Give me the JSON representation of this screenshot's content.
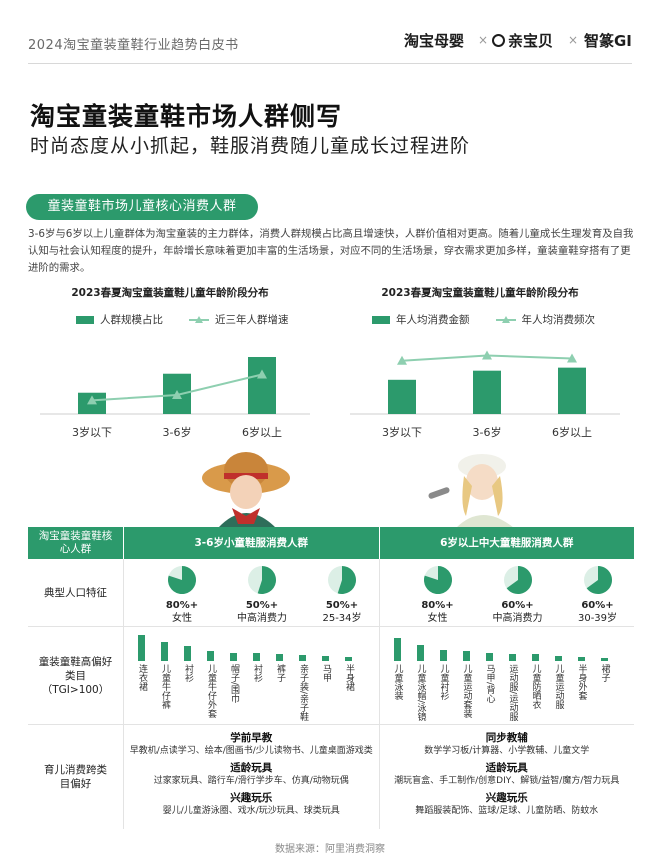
{
  "header": {
    "report_title": "2024淘宝童装童鞋行业趋势白皮书",
    "brands": [
      "淘宝母婴",
      "亲宝贝",
      "智篆GI"
    ],
    "separator": "×"
  },
  "page": {
    "title": "淘宝童装童鞋市场人群侧写",
    "subtitle": "时尚态度从小抓起，鞋服消费随儿童成长过程进阶",
    "section_pill": "童装童鞋市场儿童核心消费人群",
    "intro": "3-6岁与6岁以上儿童群体为淘宝童装的主力群体，消费人群规模占比高且增速快，人群价值相对更高。随着儿童成长生理发育及自我认知与社会认知程度的提升，年龄增长意味着更加丰富的生活场景，对应不同的生活场景，穿衣需求更加多样，童装童鞋穿搭有了更进阶的需求。"
  },
  "chart_data": [
    {
      "type": "bar",
      "title": "2023春夏淘宝童装童鞋儿童年龄阶段分布",
      "categories": [
        "3岁以下",
        "3-6岁",
        "6岁以上"
      ],
      "series": [
        {
          "name": "人群规模占比",
          "values": [
            28,
            53,
            75
          ]
        },
        {
          "name": "近三年人群增速",
          "values": [
            18,
            25,
            52
          ]
        }
      ],
      "ylim": [
        0,
        100
      ],
      "legend_position": "top"
    },
    {
      "type": "bar",
      "title": "2023春夏淘宝童装童鞋儿童年龄阶段分布",
      "categories": [
        "3岁以下",
        "3-6岁",
        "6岁以上"
      ],
      "series": [
        {
          "name": "年人均消费金额",
          "values": [
            45,
            57,
            61
          ]
        },
        {
          "name": "年人均消费频次",
          "values": [
            70,
            77,
            73
          ]
        }
      ],
      "ylim": [
        0,
        100
      ],
      "legend_position": "top"
    }
  ],
  "table": {
    "corner_label": "淘宝童装童鞋核心人群",
    "columns": [
      "3-6岁小童鞋服消费人群",
      "6岁以上中大童鞋服消费人群"
    ],
    "row_labels": {
      "population": "典型人口特征",
      "preference": "童装童鞋高偏好类目（TGI>100）",
      "cross": "育儿消费跨类目偏好"
    },
    "population": [
      [
        {
          "pct": "80%+",
          "label": "女性",
          "fraction": 0.8
        },
        {
          "pct": "50%+",
          "label": "中高消费力",
          "fraction": 0.55
        },
        {
          "pct": "50%+",
          "label": "25-34岁",
          "fraction": 0.55
        }
      ],
      [
        {
          "pct": "80%+",
          "label": "女性",
          "fraction": 0.8
        },
        {
          "pct": "60%+",
          "label": "中高消费力",
          "fraction": 0.65
        },
        {
          "pct": "60%+",
          "label": "30-39岁",
          "fraction": 0.65
        }
      ]
    ],
    "preference": [
      {
        "categories": [
          "连衣裙",
          "儿童牛仔裤",
          "衬衫",
          "儿童牛仔外套",
          "帽子/围巾",
          "衬衫",
          "裤子",
          "亲子装/亲子鞋",
          "马甲",
          "半身裙"
        ],
        "values": [
          1.0,
          0.72,
          0.58,
          0.38,
          0.32,
          0.3,
          0.28,
          0.22,
          0.18,
          0.15
        ]
      },
      {
        "categories": [
          "儿童泳装",
          "儿童泳帽/泳镜",
          "儿童衬衫",
          "儿童运动套装",
          "马甲/背心",
          "运动服/运动服",
          "儿童防晒衣",
          "儿童运动服",
          "半身外套",
          "裙子"
        ],
        "values": [
          0.9,
          0.62,
          0.42,
          0.38,
          0.32,
          0.28,
          0.26,
          0.2,
          0.16,
          0.12
        ]
      }
    ],
    "cross": [
      [
        {
          "title": "学前早教",
          "text": "早教机/点读学习、绘本/图画书/少儿读物书、儿童桌面游戏类"
        },
        {
          "title": "适龄玩具",
          "text": "过家家玩具、踏行车/滑行学步车、仿真/动物玩偶"
        },
        {
          "title": "兴趣玩乐",
          "text": "婴儿/儿童游泳圈、戏水/玩沙玩具、球类玩具"
        }
      ],
      [
        {
          "title": "同步教辅",
          "text": "数学学习板/计算器、小学教辅、儿童文学"
        },
        {
          "title": "适龄玩具",
          "text": "潮玩盲盒、手工制作/创意DIY、解锁/益智/魔方/智力玩具"
        },
        {
          "title": "兴趣玩乐",
          "text": "舞蹈服装配饰、篮球/足球、儿童防晒、防蚊水"
        }
      ]
    ]
  },
  "source": "数据来源：阿里消费洞察",
  "colors": {
    "primary": "#2c9a6c",
    "light": "#8ecfb0"
  }
}
